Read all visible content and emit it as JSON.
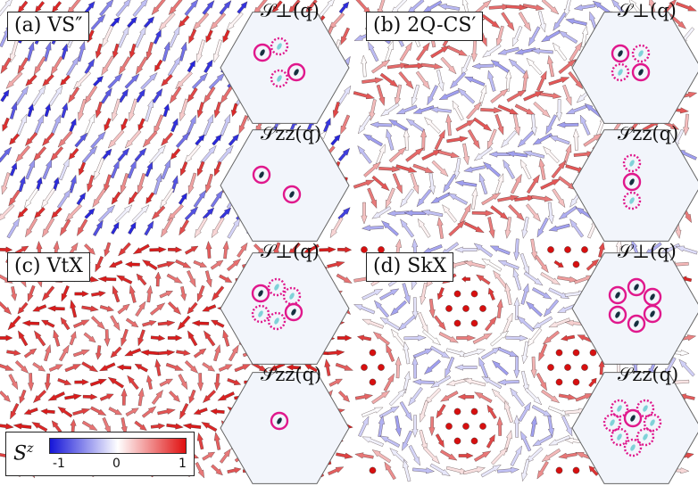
{
  "panels": [
    {
      "id": "a",
      "label": "(a) VS″",
      "structure_top": "𝒮⊥(q)",
      "structure_bottom": "𝒮zz(q)"
    },
    {
      "id": "b",
      "label": "(b) 2Q-CS′",
      "structure_top": "𝒮⊥(q)",
      "structure_bottom": "𝒮zz(q)"
    },
    {
      "id": "c",
      "label": "(c) VtX",
      "structure_top": "𝒮⊥(q)",
      "structure_bottom": "𝒮zz(q)"
    },
    {
      "id": "d",
      "label": "(d) SkX",
      "structure_top": "𝒮⊥(q)",
      "structure_bottom": "𝒮zz(q)"
    }
  ],
  "colorbar": {
    "symbol": "S",
    "superscript": "z",
    "min_label": "-1",
    "mid_label": "0",
    "max_label": "1",
    "color_neg": "#1515d8",
    "color_zero": "#ffffff",
    "color_pos": "#e01010"
  },
  "colors": {
    "circle_marker": "#e0188c",
    "peak_dark": "#15303f",
    "peak_light": "#7fd2d8",
    "hexagon_fill": "#f2f5fb"
  }
}
